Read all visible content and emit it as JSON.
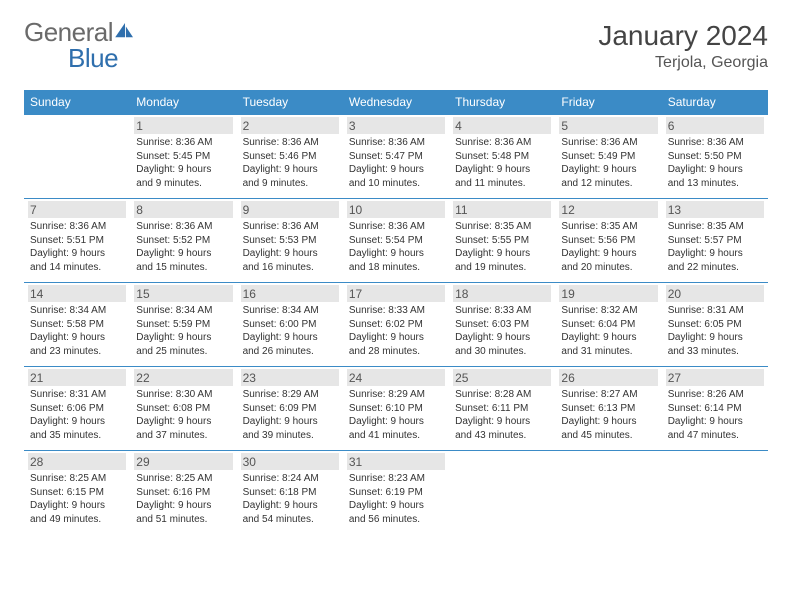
{
  "logo": {
    "text_gray": "General",
    "text_blue": "Blue"
  },
  "title": "January 2024",
  "location": "Terjola, Georgia",
  "colors": {
    "header_bg": "#3b8bc6",
    "header_text": "#ffffff",
    "daynum_bg": "#e6e6e6",
    "border": "#3b8bc6",
    "text": "#333333",
    "logo_gray": "#6a6a6a",
    "logo_blue": "#2f6fad"
  },
  "day_headers": [
    "Sunday",
    "Monday",
    "Tuesday",
    "Wednesday",
    "Thursday",
    "Friday",
    "Saturday"
  ],
  "weeks": [
    [
      null,
      {
        "n": "1",
        "sr": "Sunrise: 8:36 AM",
        "ss": "Sunset: 5:45 PM",
        "d1": "Daylight: 9 hours",
        "d2": "and 9 minutes."
      },
      {
        "n": "2",
        "sr": "Sunrise: 8:36 AM",
        "ss": "Sunset: 5:46 PM",
        "d1": "Daylight: 9 hours",
        "d2": "and 9 minutes."
      },
      {
        "n": "3",
        "sr": "Sunrise: 8:36 AM",
        "ss": "Sunset: 5:47 PM",
        "d1": "Daylight: 9 hours",
        "d2": "and 10 minutes."
      },
      {
        "n": "4",
        "sr": "Sunrise: 8:36 AM",
        "ss": "Sunset: 5:48 PM",
        "d1": "Daylight: 9 hours",
        "d2": "and 11 minutes."
      },
      {
        "n": "5",
        "sr": "Sunrise: 8:36 AM",
        "ss": "Sunset: 5:49 PM",
        "d1": "Daylight: 9 hours",
        "d2": "and 12 minutes."
      },
      {
        "n": "6",
        "sr": "Sunrise: 8:36 AM",
        "ss": "Sunset: 5:50 PM",
        "d1": "Daylight: 9 hours",
        "d2": "and 13 minutes."
      }
    ],
    [
      {
        "n": "7",
        "sr": "Sunrise: 8:36 AM",
        "ss": "Sunset: 5:51 PM",
        "d1": "Daylight: 9 hours",
        "d2": "and 14 minutes."
      },
      {
        "n": "8",
        "sr": "Sunrise: 8:36 AM",
        "ss": "Sunset: 5:52 PM",
        "d1": "Daylight: 9 hours",
        "d2": "and 15 minutes."
      },
      {
        "n": "9",
        "sr": "Sunrise: 8:36 AM",
        "ss": "Sunset: 5:53 PM",
        "d1": "Daylight: 9 hours",
        "d2": "and 16 minutes."
      },
      {
        "n": "10",
        "sr": "Sunrise: 8:36 AM",
        "ss": "Sunset: 5:54 PM",
        "d1": "Daylight: 9 hours",
        "d2": "and 18 minutes."
      },
      {
        "n": "11",
        "sr": "Sunrise: 8:35 AM",
        "ss": "Sunset: 5:55 PM",
        "d1": "Daylight: 9 hours",
        "d2": "and 19 minutes."
      },
      {
        "n": "12",
        "sr": "Sunrise: 8:35 AM",
        "ss": "Sunset: 5:56 PM",
        "d1": "Daylight: 9 hours",
        "d2": "and 20 minutes."
      },
      {
        "n": "13",
        "sr": "Sunrise: 8:35 AM",
        "ss": "Sunset: 5:57 PM",
        "d1": "Daylight: 9 hours",
        "d2": "and 22 minutes."
      }
    ],
    [
      {
        "n": "14",
        "sr": "Sunrise: 8:34 AM",
        "ss": "Sunset: 5:58 PM",
        "d1": "Daylight: 9 hours",
        "d2": "and 23 minutes."
      },
      {
        "n": "15",
        "sr": "Sunrise: 8:34 AM",
        "ss": "Sunset: 5:59 PM",
        "d1": "Daylight: 9 hours",
        "d2": "and 25 minutes."
      },
      {
        "n": "16",
        "sr": "Sunrise: 8:34 AM",
        "ss": "Sunset: 6:00 PM",
        "d1": "Daylight: 9 hours",
        "d2": "and 26 minutes."
      },
      {
        "n": "17",
        "sr": "Sunrise: 8:33 AM",
        "ss": "Sunset: 6:02 PM",
        "d1": "Daylight: 9 hours",
        "d2": "and 28 minutes."
      },
      {
        "n": "18",
        "sr": "Sunrise: 8:33 AM",
        "ss": "Sunset: 6:03 PM",
        "d1": "Daylight: 9 hours",
        "d2": "and 30 minutes."
      },
      {
        "n": "19",
        "sr": "Sunrise: 8:32 AM",
        "ss": "Sunset: 6:04 PM",
        "d1": "Daylight: 9 hours",
        "d2": "and 31 minutes."
      },
      {
        "n": "20",
        "sr": "Sunrise: 8:31 AM",
        "ss": "Sunset: 6:05 PM",
        "d1": "Daylight: 9 hours",
        "d2": "and 33 minutes."
      }
    ],
    [
      {
        "n": "21",
        "sr": "Sunrise: 8:31 AM",
        "ss": "Sunset: 6:06 PM",
        "d1": "Daylight: 9 hours",
        "d2": "and 35 minutes."
      },
      {
        "n": "22",
        "sr": "Sunrise: 8:30 AM",
        "ss": "Sunset: 6:08 PM",
        "d1": "Daylight: 9 hours",
        "d2": "and 37 minutes."
      },
      {
        "n": "23",
        "sr": "Sunrise: 8:29 AM",
        "ss": "Sunset: 6:09 PM",
        "d1": "Daylight: 9 hours",
        "d2": "and 39 minutes."
      },
      {
        "n": "24",
        "sr": "Sunrise: 8:29 AM",
        "ss": "Sunset: 6:10 PM",
        "d1": "Daylight: 9 hours",
        "d2": "and 41 minutes."
      },
      {
        "n": "25",
        "sr": "Sunrise: 8:28 AM",
        "ss": "Sunset: 6:11 PM",
        "d1": "Daylight: 9 hours",
        "d2": "and 43 minutes."
      },
      {
        "n": "26",
        "sr": "Sunrise: 8:27 AM",
        "ss": "Sunset: 6:13 PM",
        "d1": "Daylight: 9 hours",
        "d2": "and 45 minutes."
      },
      {
        "n": "27",
        "sr": "Sunrise: 8:26 AM",
        "ss": "Sunset: 6:14 PM",
        "d1": "Daylight: 9 hours",
        "d2": "and 47 minutes."
      }
    ],
    [
      {
        "n": "28",
        "sr": "Sunrise: 8:25 AM",
        "ss": "Sunset: 6:15 PM",
        "d1": "Daylight: 9 hours",
        "d2": "and 49 minutes."
      },
      {
        "n": "29",
        "sr": "Sunrise: 8:25 AM",
        "ss": "Sunset: 6:16 PM",
        "d1": "Daylight: 9 hours",
        "d2": "and 51 minutes."
      },
      {
        "n": "30",
        "sr": "Sunrise: 8:24 AM",
        "ss": "Sunset: 6:18 PM",
        "d1": "Daylight: 9 hours",
        "d2": "and 54 minutes."
      },
      {
        "n": "31",
        "sr": "Sunrise: 8:23 AM",
        "ss": "Sunset: 6:19 PM",
        "d1": "Daylight: 9 hours",
        "d2": "and 56 minutes."
      },
      null,
      null,
      null
    ]
  ]
}
